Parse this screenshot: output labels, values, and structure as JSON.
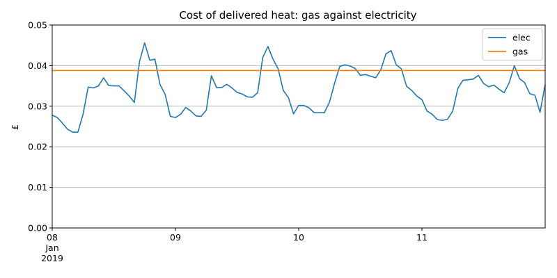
{
  "chart_data": {
    "type": "line",
    "title": "Cost of delivered heat: gas against electricity",
    "xlabel": "",
    "ylabel": "£",
    "ylim": [
      0.0,
      0.05
    ],
    "xlim": [
      0,
      4
    ],
    "y_ticks": [
      "0.00",
      "0.01",
      "0.02",
      "0.03",
      "0.04",
      "0.05"
    ],
    "x_ticks": [
      {
        "x": 0,
        "lines": [
          "08",
          "Jan",
          "2019"
        ]
      },
      {
        "x": 1,
        "lines": [
          "09"
        ]
      },
      {
        "x": 2,
        "lines": [
          "10"
        ]
      },
      {
        "x": 3,
        "lines": [
          "11"
        ]
      }
    ],
    "grid": "y",
    "legend_position": "top-right",
    "series": [
      {
        "name": "elec",
        "color": "#1f77b4",
        "x": [
          0,
          0.0417,
          0.0833,
          0.125,
          0.1667,
          0.2083,
          0.25,
          0.2917,
          0.3333,
          0.375,
          0.4167,
          0.4583,
          0.5,
          0.5417,
          0.5833,
          0.625,
          0.6667,
          0.7083,
          0.75,
          0.7917,
          0.8333,
          0.875,
          0.9167,
          0.9583,
          1.0,
          1.0417,
          1.0833,
          1.125,
          1.1667,
          1.2083,
          1.25,
          1.2917,
          1.3333,
          1.375,
          1.4167,
          1.4583,
          1.5,
          1.5417,
          1.5833,
          1.625,
          1.6667,
          1.7083,
          1.75,
          1.7917,
          1.8333,
          1.875,
          1.9167,
          1.9583,
          2.0,
          2.0417,
          2.0833,
          2.125,
          2.1667,
          2.2083,
          2.25,
          2.2917,
          2.3333,
          2.375,
          2.4167,
          2.4583,
          2.5,
          2.5417,
          2.5833,
          2.625,
          2.6667,
          2.7083,
          2.75,
          2.7917,
          2.8333,
          2.875,
          2.9167,
          2.9583,
          3.0,
          3.0417,
          3.0833,
          3.125,
          3.1667,
          3.2083,
          3.25,
          3.2917,
          3.3333,
          3.375,
          3.4167,
          3.4583,
          3.5,
          3.5417,
          3.5833,
          3.625,
          3.6667,
          3.7083,
          3.75,
          3.7917,
          3.8333,
          3.875,
          3.9167,
          3.9583,
          4.0
        ],
        "values": [
          0.0278,
          0.0272,
          0.0258,
          0.0243,
          0.0236,
          0.0236,
          0.028,
          0.0347,
          0.0345,
          0.035,
          0.037,
          0.0351,
          0.035,
          0.035,
          0.0338,
          0.0325,
          0.0309,
          0.041,
          0.0456,
          0.0413,
          0.0416,
          0.0353,
          0.0329,
          0.0275,
          0.0272,
          0.028,
          0.0297,
          0.0288,
          0.0276,
          0.0275,
          0.029,
          0.0375,
          0.0346,
          0.0346,
          0.0354,
          0.0345,
          0.0334,
          0.033,
          0.0323,
          0.0322,
          0.0333,
          0.042,
          0.0447,
          0.0416,
          0.0392,
          0.0339,
          0.0321,
          0.0281,
          0.0302,
          0.0302,
          0.0296,
          0.0284,
          0.0284,
          0.0284,
          0.031,
          0.0357,
          0.0398,
          0.0402,
          0.0399,
          0.0393,
          0.0376,
          0.0378,
          0.0374,
          0.037,
          0.039,
          0.0429,
          0.0437,
          0.0402,
          0.0392,
          0.0349,
          0.0339,
          0.0325,
          0.0316,
          0.0288,
          0.028,
          0.0267,
          0.0265,
          0.0268,
          0.0288,
          0.0344,
          0.0364,
          0.0365,
          0.0367,
          0.0376,
          0.0356,
          0.0348,
          0.0352,
          0.0342,
          0.0333,
          0.0358,
          0.04,
          0.0368,
          0.0358,
          0.0331,
          0.0327,
          0.0285,
          0.0353
        ]
      },
      {
        "name": "gas",
        "color": "#ff7f0e",
        "x": [
          0,
          4
        ],
        "values": [
          0.0388,
          0.0388
        ]
      }
    ]
  }
}
